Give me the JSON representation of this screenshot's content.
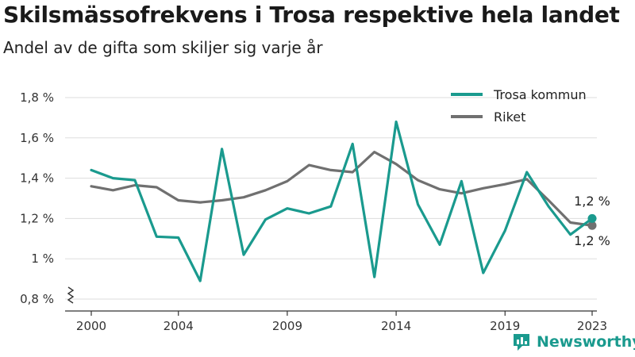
{
  "chart_data": {
    "type": "line",
    "title": "Skilsmässofrekvens i Trosa respektive hela landet",
    "subtitle": "Andel av de gifta som skiljer sig varje år",
    "x": [
      2000,
      2001,
      2002,
      2003,
      2004,
      2005,
      2006,
      2007,
      2008,
      2009,
      2010,
      2011,
      2012,
      2013,
      2014,
      2015,
      2016,
      2017,
      2018,
      2019,
      2020,
      2021,
      2022,
      2023
    ],
    "x_ticks": [
      "2000",
      "2004",
      "2009",
      "2014",
      "2019",
      "2023"
    ],
    "x_tick_values": [
      2000,
      2004,
      2009,
      2014,
      2019,
      2023
    ],
    "y_ticks": [
      "0,8 %",
      "1 %",
      "1,2 %",
      "1,4 %",
      "1,6 %",
      "1,8 %"
    ],
    "y_tick_values": [
      0.8,
      1.0,
      1.2,
      1.4,
      1.6,
      1.8
    ],
    "ylim": [
      0.8,
      1.8
    ],
    "grid": true,
    "legend_position": "top-right",
    "series": [
      {
        "name": "Trosa kommun",
        "color": "#1a9a8e",
        "values": [
          1.44,
          1.4,
          1.39,
          1.11,
          1.105,
          0.89,
          1.545,
          1.02,
          1.195,
          1.25,
          1.225,
          1.26,
          1.57,
          0.91,
          1.68,
          1.27,
          1.07,
          1.385,
          0.93,
          1.14,
          1.43,
          1.26,
          1.12,
          1.2
        ],
        "end_label": "1,2 %"
      },
      {
        "name": "Riket",
        "color": "#707070",
        "values": [
          1.36,
          1.34,
          1.365,
          1.355,
          1.29,
          1.28,
          1.29,
          1.305,
          1.34,
          1.385,
          1.465,
          1.44,
          1.43,
          1.53,
          1.47,
          1.39,
          1.345,
          1.325,
          1.35,
          1.37,
          1.395,
          1.29,
          1.18,
          1.165
        ],
        "end_label": "1,2 %"
      }
    ]
  },
  "brand": {
    "name": "Newsworthy",
    "icon": "bar-chart-logo-icon"
  }
}
